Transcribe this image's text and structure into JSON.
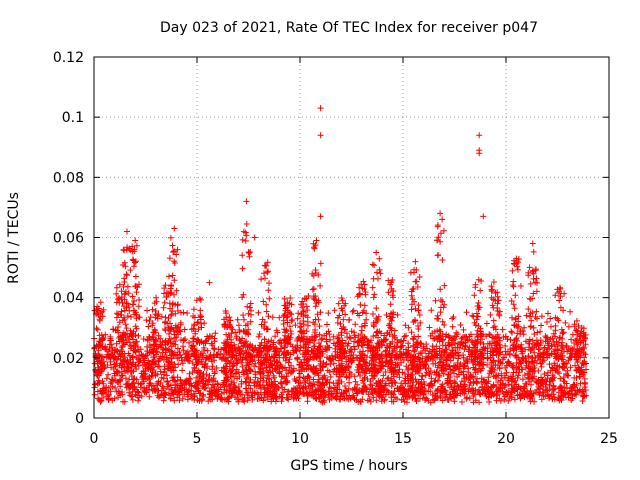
{
  "chart_data": {
    "type": "scatter",
    "title": "Day 023 of 2021, Rate Of TEC Index for receiver p047",
    "xlabel": "GPS time / hours",
    "ylabel": "ROTI / TECUs",
    "xlim": [
      0,
      25
    ],
    "ylim": [
      0,
      0.12
    ],
    "xticks": [
      0,
      5,
      10,
      15,
      20,
      25
    ],
    "xtick_labels": [
      "0",
      "5",
      "10",
      "15",
      "20",
      "25"
    ],
    "yticks": [
      0,
      0.02,
      0.04,
      0.06,
      0.08,
      0.1,
      0.12
    ],
    "ytick_labels": [
      "0",
      "0.02",
      "0.04",
      "0.06",
      "0.08",
      "0.1",
      "0.12"
    ],
    "grid": true,
    "marker": "+",
    "series": [
      {
        "name": "ROTI",
        "color": "#ff0000",
        "x_range": [
          0,
          23.9
        ],
        "baseline_range": [
          0.005,
          0.025
        ],
        "notable_points": [
          {
            "x": 11.0,
            "y": 0.103
          },
          {
            "x": 11.0,
            "y": 0.094
          },
          {
            "x": 11.0,
            "y": 0.067
          },
          {
            "x": 18.7,
            "y": 0.094
          },
          {
            "x": 18.7,
            "y": 0.089
          },
          {
            "x": 18.7,
            "y": 0.088
          },
          {
            "x": 18.9,
            "y": 0.067
          },
          {
            "x": 7.4,
            "y": 0.072
          },
          {
            "x": 16.8,
            "y": 0.068
          },
          {
            "x": 16.9,
            "y": 0.066
          },
          {
            "x": 1.6,
            "y": 0.062
          },
          {
            "x": 3.9,
            "y": 0.063
          },
          {
            "x": 2.0,
            "y": 0.059
          },
          {
            "x": 7.8,
            "y": 0.06
          },
          {
            "x": 21.3,
            "y": 0.058
          },
          {
            "x": 13.7,
            "y": 0.055
          },
          {
            "x": 15.6,
            "y": 0.052
          },
          {
            "x": 10.8,
            "y": 0.059
          },
          {
            "x": 5.6,
            "y": 0.045
          },
          {
            "x": 20.5,
            "y": 0.053
          }
        ],
        "spike_clusters": [
          {
            "x": 0.2,
            "peak": 0.039
          },
          {
            "x": 1.3,
            "peak": 0.045
          },
          {
            "x": 1.6,
            "peak": 0.058
          },
          {
            "x": 2.0,
            "peak": 0.058
          },
          {
            "x": 2.9,
            "peak": 0.04
          },
          {
            "x": 3.6,
            "peak": 0.048
          },
          {
            "x": 3.9,
            "peak": 0.06
          },
          {
            "x": 5.0,
            "peak": 0.04
          },
          {
            "x": 6.5,
            "peak": 0.035
          },
          {
            "x": 7.4,
            "peak": 0.065
          },
          {
            "x": 8.3,
            "peak": 0.052
          },
          {
            "x": 9.4,
            "peak": 0.04
          },
          {
            "x": 10.2,
            "peak": 0.042
          },
          {
            "x": 10.8,
            "peak": 0.058
          },
          {
            "x": 12.0,
            "peak": 0.04
          },
          {
            "x": 13.0,
            "peak": 0.047
          },
          {
            "x": 13.7,
            "peak": 0.054
          },
          {
            "x": 14.4,
            "peak": 0.047
          },
          {
            "x": 15.6,
            "peak": 0.052
          },
          {
            "x": 16.8,
            "peak": 0.065
          },
          {
            "x": 18.6,
            "peak": 0.047
          },
          {
            "x": 19.5,
            "peak": 0.047
          },
          {
            "x": 20.5,
            "peak": 0.053
          },
          {
            "x": 21.3,
            "peak": 0.056
          },
          {
            "x": 22.6,
            "peak": 0.044
          },
          {
            "x": 23.6,
            "peak": 0.03
          }
        ]
      }
    ]
  }
}
